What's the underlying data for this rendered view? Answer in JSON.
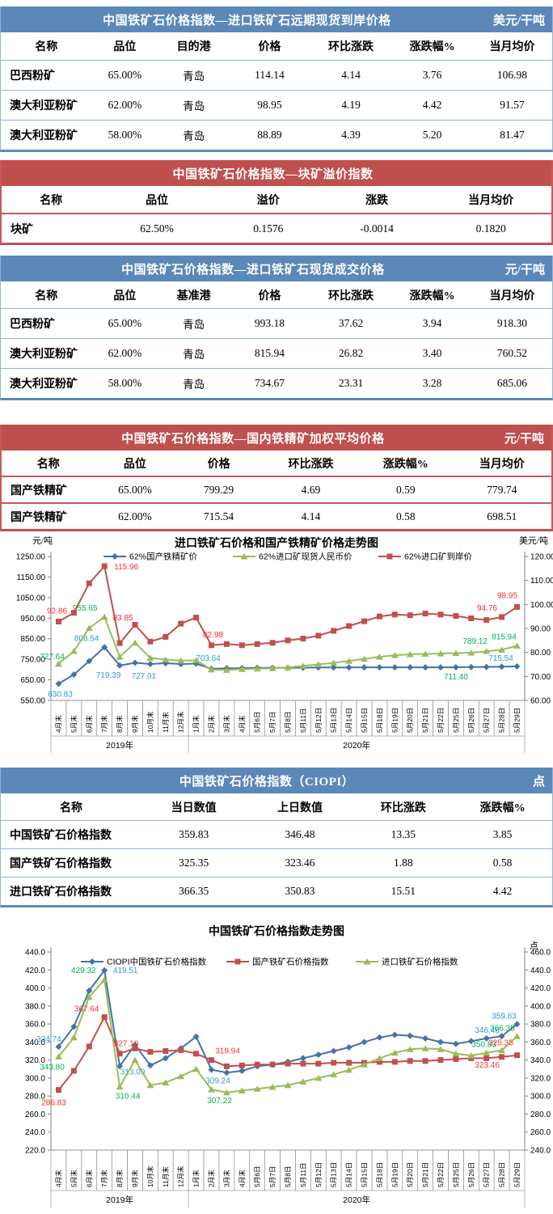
{
  "tables": [
    {
      "title": "中国铁矿石价格指数—进口铁矿石远期现货到岸价格",
      "unit": "美元/干吨",
      "columns": [
        "名称",
        "品位",
        "目的港",
        "价格",
        "环比涨跌",
        "涨跌幅%",
        "当月均价"
      ],
      "rows": [
        [
          "巴西粉矿",
          "65.00%",
          "青岛",
          "114.14",
          "4.14",
          "3.76",
          "106.98"
        ],
        [
          "澳大利亚粉矿",
          "62.00%",
          "青岛",
          "98.95",
          "4.19",
          "4.42",
          "91.57"
        ],
        [
          "澳大利亚粉矿",
          "58.00%",
          "青岛",
          "88.89",
          "4.39",
          "5.20",
          "81.47"
        ]
      ]
    },
    {
      "title": "中国铁矿石价格指数—块矿溢价指数",
      "unit": "",
      "columns": [
        "名称",
        "品位",
        "溢价",
        "涨跌",
        "当月均价"
      ],
      "rows": [
        [
          "块矿",
          "62.50%",
          "0.1576",
          "-0.0014",
          "0.1820"
        ]
      ]
    },
    {
      "title": "中国铁矿石价格指数—进口铁矿石现货成交价格",
      "unit": "元/干吨",
      "columns": [
        "名称",
        "品位",
        "基准港",
        "价格",
        "环比涨跌",
        "涨跌幅%",
        "当月均价"
      ],
      "rows": [
        [
          "巴西粉矿",
          "65.00%",
          "青岛",
          "993.18",
          "37.62",
          "3.94",
          "918.30"
        ],
        [
          "澳大利亚粉矿",
          "62.00%",
          "青岛",
          "815.94",
          "26.82",
          "3.40",
          "760.52"
        ],
        [
          "澳大利亚粉矿",
          "58.00%",
          "青岛",
          "734.67",
          "23.31",
          "3.28",
          "685.06"
        ]
      ]
    },
    {
      "title": "中国铁矿石价格指数—国内铁精矿加权平均价格",
      "unit": "元/干吨",
      "columns": [
        "名称",
        "品位",
        "价格",
        "环比涨跌",
        "涨跌幅%",
        "当月均价"
      ],
      "rows": [
        [
          "国产铁精矿",
          "65.00%",
          "799.29",
          "4.69",
          "0.59",
          "779.74"
        ],
        [
          "国产铁精矿",
          "62.00%",
          "715.54",
          "4.14",
          "0.58",
          "698.51"
        ]
      ]
    },
    {
      "title": "中国铁矿石价格指数（CIOPI）",
      "unit": "点",
      "columns": [
        "名称",
        "当日数值",
        "上日数值",
        "环比涨跌",
        "涨跌幅%"
      ],
      "rows": [
        [
          "中国铁矿石价格指数",
          "359.83",
          "346.48",
          "13.35",
          "3.85"
        ],
        [
          "国产铁矿石价格指数",
          "325.35",
          "323.46",
          "1.88",
          "0.58"
        ],
        [
          "进口铁矿石价格指数",
          "366.35",
          "350.83",
          "15.51",
          "4.42"
        ]
      ]
    }
  ],
  "chart_data": [
    {
      "type": "line",
      "title": "进口铁矿石价格和国产铁精矿价格走势图",
      "grid": false,
      "legend_position": "top",
      "tick_decimals": 2,
      "left_axis": {
        "label": "元/吨",
        "min": 550,
        "max": 1250,
        "step": 100
      },
      "right_axis": {
        "label": "美元/吨",
        "min": 60,
        "max": 120,
        "step": 10
      },
      "categories": [
        "4月末",
        "5月末",
        "6月末",
        "7月末",
        "8月末",
        "9月末",
        "10月末",
        "11月末",
        "12月末",
        "1月末",
        "2月末",
        "3月末",
        "4月末",
        "5月6日",
        "5月7日",
        "5月8日",
        "5月11日",
        "5月12日",
        "5月13日",
        "5月14日",
        "5月15日",
        "5月18日",
        "5月19日",
        "5月20日",
        "5月21日",
        "5月22日",
        "5月25日",
        "5月26日",
        "5月27日",
        "5月28日",
        "5月29日"
      ],
      "year_groups": [
        {
          "label": "2019年",
          "cols": 9
        },
        {
          "label": "2020年",
          "cols": 22
        }
      ],
      "series": [
        {
          "name": "62%国产铁精矿价",
          "axis": "left",
          "marker": "diamond",
          "color": "#4572A7",
          "label_color": "#2E9BD6",
          "values": [
            630.83,
            676,
            741,
            808.54,
            719.39,
            733,
            727.01,
            731,
            727,
            729,
            703.64,
            706,
            707,
            708,
            708,
            709,
            709,
            710,
            710,
            710,
            711,
            711,
            711,
            711,
            711,
            711,
            711.4,
            712,
            713,
            714,
            715.54
          ],
          "point_labels": [
            {
              "i": 0,
              "t": "630.83",
              "dx": 2,
              "dy": 16
            },
            {
              "i": 3,
              "t": "808.54",
              "dx": -22,
              "dy": -8
            },
            {
              "i": 4,
              "t": "719.39",
              "dx": -14,
              "dy": 15
            },
            {
              "i": 6,
              "t": "727.01",
              "dx": -8,
              "dy": 18
            },
            {
              "i": 10,
              "t": "703.64",
              "dx": -4,
              "dy": -10
            },
            {
              "i": 26,
              "t": "711.40",
              "dx": 0,
              "dy": 15,
              "color": "#00B050"
            },
            {
              "i": 30,
              "t": "715.54",
              "dx": -20,
              "dy": -7
            }
          ]
        },
        {
          "name": "62%进口矿现货人民币价",
          "axis": "left",
          "marker": "triangle",
          "color": "#9BBB59",
          "label_color": "#00B050",
          "values": [
            727.64,
            790,
            902,
            955.65,
            762,
            830,
            757,
            749,
            743,
            745,
            700,
            698,
            702,
            704,
            706,
            710,
            718,
            725,
            733,
            742,
            752,
            762,
            770,
            774,
            776,
            778,
            780,
            782,
            789.12,
            796,
            815.94
          ],
          "point_labels": [
            {
              "i": 0,
              "t": "727.64",
              "dx": -8,
              "dy": -6
            },
            {
              "i": 3,
              "t": "955.65",
              "dx": -24,
              "dy": -8
            },
            {
              "i": 28,
              "t": "789.12",
              "dx": -14,
              "dy": -9
            },
            {
              "i": 30,
              "t": "815.94",
              "dx": -16,
              "dy": -8
            }
          ]
        },
        {
          "name": "62%进口矿到岸价",
          "axis": "right",
          "marker": "square",
          "color": "#C0504D",
          "label_color": "#FF2D2D",
          "values": [
            92.86,
            96.5,
            108.8,
            115.96,
            83.85,
            91.5,
            84.5,
            86.5,
            92,
            94.5,
            82.98,
            83.5,
            83,
            83.5,
            84,
            85,
            85.8,
            87,
            89,
            91,
            93,
            95,
            95.8,
            95.5,
            96.2,
            95.8,
            95.2,
            94.2,
            93.5,
            94.76,
            98.95
          ],
          "point_labels": [
            {
              "i": 0,
              "t": "92.86",
              "dx": -2,
              "dy": -10
            },
            {
              "i": 3,
              "t": "115.96",
              "dx": 27,
              "dy": 4
            },
            {
              "i": 4,
              "t": "83.85",
              "dx": 4,
              "dy": -28
            },
            {
              "i": 10,
              "t": "82.98",
              "dx": 2,
              "dy": -10
            },
            {
              "i": 29,
              "t": "94.76",
              "dx": -18,
              "dy": -8
            },
            {
              "i": 30,
              "t": "98.95",
              "dx": -12,
              "dy": -11
            }
          ]
        }
      ]
    },
    {
      "type": "line",
      "title": "中国铁矿石价格指数走势图",
      "grid": false,
      "legend_position": "top",
      "tick_decimals": 1,
      "left_axis": {
        "label": "",
        "min": 220,
        "max": 440,
        "step": 20
      },
      "right_axis": {
        "label": "点",
        "min": 240,
        "max": 460,
        "step": 20
      },
      "categories": [
        "4月末",
        "5月末",
        "6月末",
        "7月末",
        "8月末",
        "9月末",
        "10月末",
        "11月末",
        "12月末",
        "1月末",
        "2月末",
        "3月末",
        "4月末",
        "5月6日",
        "5月7日",
        "5月8日",
        "5月11日",
        "5月12日",
        "5月13日",
        "5月14日",
        "5月15日",
        "5月18日",
        "5月19日",
        "5月20日",
        "5月21日",
        "5月22日",
        "5月25日",
        "5月26日",
        "5月27日",
        "5月28日",
        "5月29日"
      ],
      "year_groups": [
        {
          "label": "2019年",
          "cols": 9
        },
        {
          "label": "2020年",
          "cols": 22
        }
      ],
      "series": [
        {
          "name": "CIOPI中国铁矿石价格指数",
          "axis": "left",
          "marker": "diamond",
          "color": "#4572A7",
          "label_color": "#2E9BD6",
          "values": [
            334.74,
            357,
            397,
            419.51,
            313.09,
            337,
            314,
            322,
            333,
            346,
            309.24,
            306,
            308,
            313,
            315,
            318,
            322,
            326,
            330,
            334,
            340,
            345,
            348,
            347,
            344,
            340,
            338,
            341,
            344,
            346.48,
            359.83
          ],
          "point_labels": [
            {
              "i": 0,
              "t": "334.74",
              "dx": -12,
              "dy": -6
            },
            {
              "i": 3,
              "t": "419.51",
              "dx": 26,
              "dy": 3
            },
            {
              "i": 4,
              "t": "313.09",
              "dx": 16,
              "dy": 10
            },
            {
              "i": 10,
              "t": "309.24",
              "dx": 8,
              "dy": 17
            },
            {
              "i": 29,
              "t": "346.48",
              "dx": -18,
              "dy": -4
            },
            {
              "i": 30,
              "t": "359.83",
              "dx": -16,
              "dy": -7
            }
          ]
        },
        {
          "name": "国产铁矿石价格指数",
          "axis": "left",
          "marker": "square",
          "color": "#C0504D",
          "label_color": "#FF2D2D",
          "values": [
            286.83,
            308,
            335,
            367.64,
            327.1,
            333,
            329,
            330,
            331,
            327,
            319.94,
            313,
            314,
            315,
            315,
            316,
            316,
            316,
            317,
            317,
            317,
            318,
            318,
            319,
            319,
            320,
            321,
            322,
            322,
            323.46,
            325.35
          ],
          "point_labels": [
            {
              "i": 0,
              "t": "286.83",
              "dx": -6,
              "dy": 19
            },
            {
              "i": 3,
              "t": "367.64",
              "dx": -22,
              "dy": -7
            },
            {
              "i": 4,
              "t": "327.10",
              "dx": 8,
              "dy": -9
            },
            {
              "i": 10,
              "t": "319.94",
              "dx": 20,
              "dy": -8
            },
            {
              "i": 29,
              "t": "323.46",
              "dx": -18,
              "dy": 13
            },
            {
              "i": 30,
              "t": "325.35",
              "dx": -20,
              "dy": -12
            }
          ]
        },
        {
          "name": "进口铁矿石价格指数",
          "axis": "right",
          "marker": "triangle",
          "color": "#9BBB59",
          "label_color": "#00B050",
          "values": [
            343.8,
            365,
            410,
            429.32,
            310.44,
            340,
            312,
            315,
            322,
            330,
            307.22,
            304,
            306,
            308,
            310,
            312,
            316,
            320,
            324,
            329,
            335,
            342,
            348,
            352,
            353,
            352,
            347,
            345,
            348,
            350.83,
            366.35
          ],
          "point_labels": [
            {
              "i": 0,
              "t": "343.80",
              "dx": -8,
              "dy": 16
            },
            {
              "i": 3,
              "t": "429.32",
              "dx": -26,
              "dy": -8
            },
            {
              "i": 4,
              "t": "310.44",
              "dx": 10,
              "dy": 15
            },
            {
              "i": 10,
              "t": "307.22",
              "dx": 10,
              "dy": 17
            },
            {
              "i": 29,
              "t": "350.83",
              "dx": -22,
              "dy": -4
            },
            {
              "i": 30,
              "t": "366.35",
              "dx": -18,
              "dy": -7
            }
          ]
        }
      ]
    }
  ]
}
